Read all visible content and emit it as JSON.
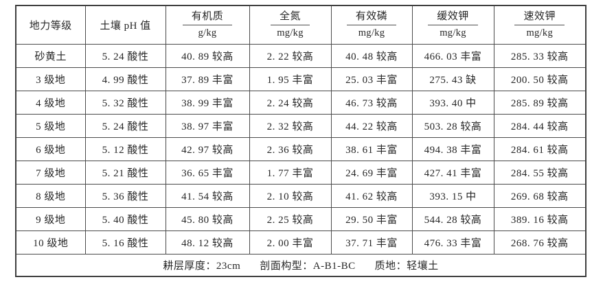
{
  "table": {
    "columns": [
      {
        "label": "地力等级",
        "unit": null
      },
      {
        "label": "土壤 pH 值",
        "unit": null
      },
      {
        "label": "有机质",
        "unit": "g/kg"
      },
      {
        "label": "全氮",
        "unit": "mg/kg"
      },
      {
        "label": "有效磷",
        "unit": "mg/kg"
      },
      {
        "label": "缓效钾",
        "unit": "mg/kg"
      },
      {
        "label": "速效钾",
        "unit": "mg/kg"
      }
    ],
    "rows": [
      [
        "砂黄土",
        "5. 24 酸性",
        "40. 89 较高",
        "2. 22 较高",
        "40. 48 较高",
        "466. 03 丰富",
        "285. 33 较高"
      ],
      [
        "3 级地",
        "4. 99 酸性",
        "37. 89 丰富",
        "1. 95 丰富",
        "25. 03 丰富",
        "275. 43 缺",
        "200. 50 较高"
      ],
      [
        "4 级地",
        "5. 32 酸性",
        "38. 99 丰富",
        "2. 24 较高",
        "46. 73 较高",
        "393. 40 中",
        "285. 89 较高"
      ],
      [
        "5 级地",
        "5. 24 酸性",
        "38. 97 丰富",
        "2. 32 较高",
        "44. 22 较高",
        "503. 28 较高",
        "284. 44 较高"
      ],
      [
        "6 级地",
        "5. 12 酸性",
        "42. 97 较高",
        "2. 36 较高",
        "38. 61 丰富",
        "494. 38 丰富",
        "284. 61 较高"
      ],
      [
        "7 级地",
        "5. 21 酸性",
        "36. 65 丰富",
        "1. 77 丰富",
        "24. 69 丰富",
        "427. 41 丰富",
        "284. 55 较高"
      ],
      [
        "8 级地",
        "5. 36 酸性",
        "41. 54 较高",
        "2. 10 较高",
        "41. 62 较高",
        "393. 15 中",
        "269. 68 较高"
      ],
      [
        "9 级地",
        "5. 40 酸性",
        "45. 80 较高",
        "2. 25 较高",
        "29. 50 丰富",
        "544. 28 较高",
        "389. 16 较高"
      ],
      [
        "10 级地",
        "5. 16 酸性",
        "48. 12 较高",
        "2. 00 丰富",
        "37. 71 丰富",
        "476. 33 丰富",
        "268. 76 较高"
      ]
    ],
    "footer": {
      "items": [
        "耕层厚度：23cm",
        "剖面构型：A-B1-BC",
        "质地：轻壤土"
      ]
    }
  }
}
